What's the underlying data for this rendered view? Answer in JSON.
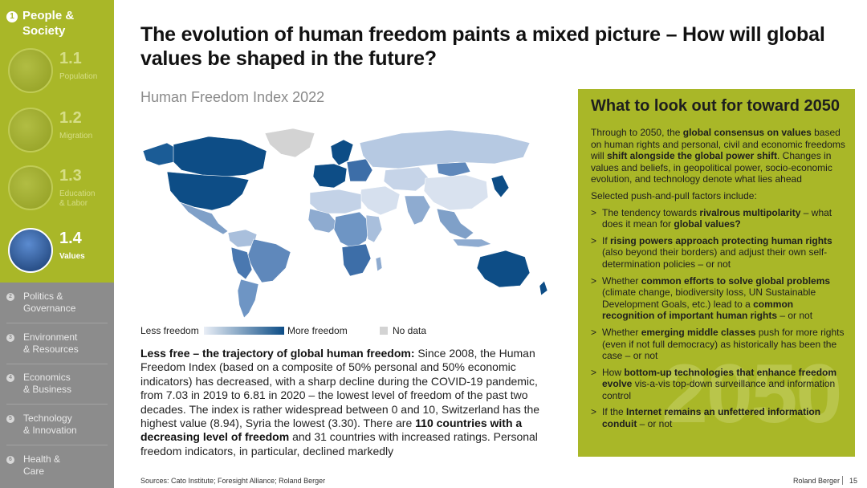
{
  "sidebar": {
    "header": {
      "number": "1",
      "title_line1": "People &",
      "title_line2": "Society"
    },
    "items": [
      {
        "number": "1.1",
        "label": "Population",
        "label2": ""
      },
      {
        "number": "1.2",
        "label": "Migration",
        "label2": ""
      },
      {
        "number": "1.3",
        "label": "Education",
        "label2": "& Labor"
      },
      {
        "number": "1.4",
        "label": "Values",
        "label2": ""
      }
    ],
    "sections": [
      {
        "number": "2",
        "line1": "Politics &",
        "line2": "Governance"
      },
      {
        "number": "3",
        "line1": "Environment",
        "line2": "& Resources"
      },
      {
        "number": "4",
        "line1": "Economics",
        "line2": "& Business"
      },
      {
        "number": "5",
        "line1": "Technology",
        "line2": "& Innovation"
      },
      {
        "number": "6",
        "line1": "Health &",
        "line2": "Care"
      }
    ]
  },
  "title": {
    "line1": "The evolution of human freedom paints a mixed picture – How will global",
    "line2": "values be shaped in the future?"
  },
  "map": {
    "title": "Human Freedom Index 2022",
    "legend": {
      "less": "Less freedom",
      "more": "More freedom",
      "no_data": "No data"
    },
    "colors": {
      "low": "#e9eef6",
      "high": "#0d4d86",
      "no_data": "#d3d3d3"
    }
  },
  "body": {
    "lead": "Less free – the trajectory of global human freedom:",
    "t1": " Since 2008, the Human Freedom Index (based on a composite of 50% personal and 50% economic indicators) has decreased, with a sharp decline during the COVID-19 pandemic, from 7.03 in 2019 to 6.81 in 2020 – the lowest level of freedom of the past two decades. The index is rather widespread between 0 and 10, Switzerland has the highest value (8.94), Syria the lowest (3.30). There are ",
    "b1": "110 countries with a decreasing level of freedom",
    "t2": " and 31 countries with increased ratings. Personal freedom indicators, in particular, declined markedly"
  },
  "panel": {
    "heading": "What to look out for toward 2050",
    "watermark": "2050",
    "p1": {
      "a": "Through to 2050, the ",
      "b1": "global consensus on values",
      "c": " based on human rights and personal, civil and economic freedoms will ",
      "b2": "shift alongside the global power shift",
      "d": ". Changes in values and beliefs, in geopolitical power, socio-economic evolution, and technology denote what lies ahead"
    },
    "p2": "Selected push-and-pull factors include:",
    "bullet_char": ">",
    "bullets": [
      {
        "a": "The tendency towards ",
        "b1": "rivalrous multipolarity",
        "c": " – what does it mean for ",
        "b2": "global values?",
        "d": ""
      },
      {
        "a": "If ",
        "b1": "rising powers approach protecting human rights",
        "c": " (also beyond their borders) and adjust their own self-determination policies – or not",
        "b2": "",
        "d": ""
      },
      {
        "a": "Whether ",
        "b1": "common efforts to solve global problems",
        "c": " (climate change, biodiversity loss, UN Sustainable Development Goals, etc.) lead to a ",
        "b2": "common recognition of important human rights",
        "d": " – or not"
      },
      {
        "a": "Whether ",
        "b1": "emerging middle classes",
        "c": " push for more rights (even if not full democracy) as historically has been the case – or not",
        "b2": "",
        "d": ""
      },
      {
        "a": "How ",
        "b1": "bottom-up technologies that enhance freedom evolve",
        "c": " vis-a-vis top-down surveillance and information control",
        "b2": "",
        "d": ""
      },
      {
        "a": "If the ",
        "b1": "Internet remains an unfettered information conduit",
        "c": " – or not",
        "b2": "",
        "d": ""
      }
    ]
  },
  "footer": {
    "sources": "Sources: Cato Institute; Foresight Alliance; Roland Berger",
    "brand": "Roland Berger",
    "page": "15"
  }
}
